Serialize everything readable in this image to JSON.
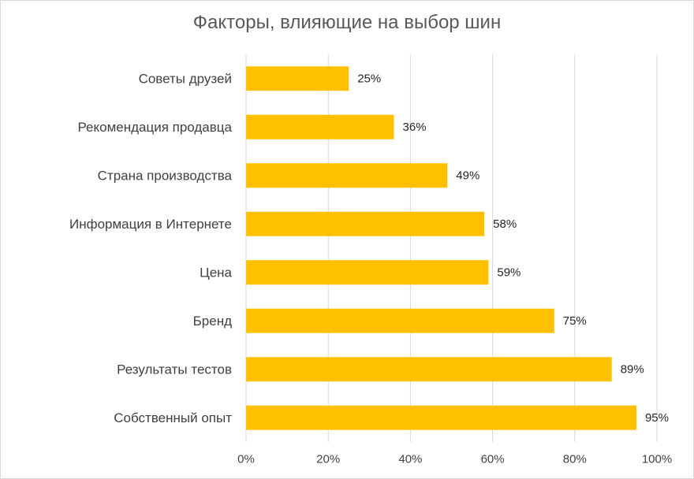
{
  "chart_data": {
    "type": "bar",
    "orientation": "horizontal",
    "title": "Факторы, влияющие на выбор шин",
    "categories": [
      "Советы друзей",
      "Рекомендация продавца",
      "Страна производства",
      "Информация в Интернете",
      "Цена",
      "Бренд",
      "Результаты тестов",
      "Собственный опыт"
    ],
    "values": [
      25,
      36,
      49,
      58,
      59,
      75,
      89,
      95
    ],
    "value_labels": [
      "25%",
      "36%",
      "49%",
      "58%",
      "59%",
      "75%",
      "89%",
      "95%"
    ],
    "xlabel": "",
    "ylabel": "",
    "xlim": [
      0,
      100
    ],
    "x_ticks": [
      0,
      20,
      40,
      60,
      80,
      100
    ],
    "x_tick_labels": [
      "0%",
      "20%",
      "40%",
      "60%",
      "80%",
      "100%"
    ],
    "grid": "vertical",
    "legend": "none",
    "bar_color": "#FFC000",
    "grid_color": "#D9D9D9"
  }
}
